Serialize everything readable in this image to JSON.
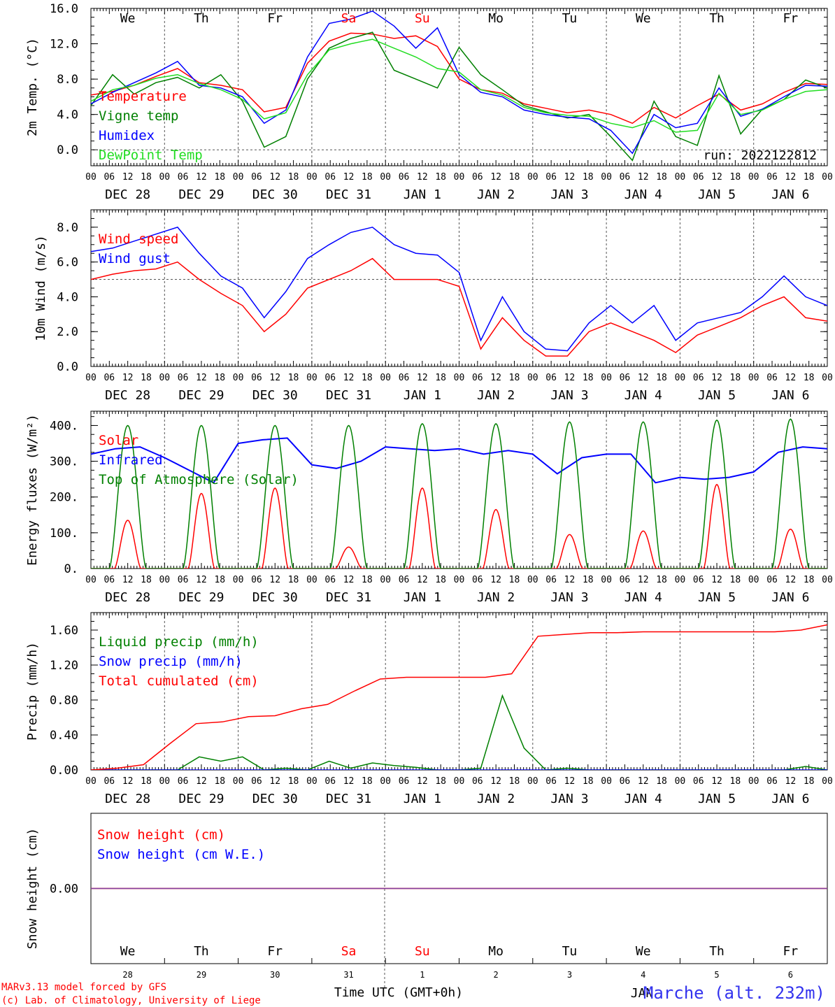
{
  "chart_data": {
    "type": "line",
    "run_label": "run: 2022122812",
    "footer": {
      "credit_line1": "MARv3.13 model forced by GFS",
      "credit_line2": "(c) Lab. of Climatology, University of Liege",
      "time_axis_label": "Time UTC (GMT+0h)",
      "station": "Marche (alt. 232m)",
      "month_label": "JAN"
    },
    "days": [
      {
        "weekday": "We",
        "date": "DEC 28",
        "num": "28",
        "weekend": false
      },
      {
        "weekday": "Th",
        "date": "DEC 29",
        "num": "29",
        "weekend": false
      },
      {
        "weekday": "Fr",
        "date": "DEC 30",
        "num": "30",
        "weekend": false
      },
      {
        "weekday": "Sa",
        "date": "DEC 31",
        "num": "31",
        "weekend": true
      },
      {
        "weekday": "Su",
        "date": "JAN  1",
        "num": "1",
        "weekend": true
      },
      {
        "weekday": "Mo",
        "date": "JAN  2",
        "num": "2",
        "weekend": false
      },
      {
        "weekday": "Tu",
        "date": "JAN  3",
        "num": "3",
        "weekend": false
      },
      {
        "weekday": "We",
        "date": "JAN  4",
        "num": "4",
        "weekend": false
      },
      {
        "weekday": "Th",
        "date": "JAN  5",
        "num": "5",
        "weekend": false
      },
      {
        "weekday": "Fr",
        "date": "JAN  6",
        "num": "6",
        "weekend": false
      }
    ],
    "hour_ticks": [
      "00",
      "06",
      "12",
      "18"
    ],
    "hour_tick_end": "00",
    "colors": {
      "red": "#ff0000",
      "blue": "#0000ff",
      "green": "#008000",
      "lightgreen": "#22dd22",
      "dark": "#000000",
      "purple": "#7f3f9f"
    },
    "panels": [
      {
        "id": "temp",
        "ylabel": "2m Temp. (°C)",
        "ylim": [
          -1.8,
          16.0
        ],
        "ticks": [
          0.0,
          4.0,
          8.0,
          12.0,
          16.0
        ],
        "tick_labels": [
          "0.0",
          "4.0",
          "8.0",
          "12.0",
          "16.0"
        ],
        "ref_line": 0.0,
        "series": [
          {
            "name": "Temperature",
            "color": "red",
            "values": [
              6.2,
              6.6,
              7.3,
              8.3,
              9.2,
              7.6,
              7.3,
              6.8,
              4.3,
              4.8,
              9.8,
              12.3,
              13.2,
              13.1,
              12.6,
              12.9,
              11.7,
              8.0,
              6.8,
              6.4,
              5.2,
              4.7,
              4.2,
              4.5,
              4.0,
              3.0,
              4.8,
              3.6,
              5.0,
              6.3,
              4.5,
              5.2,
              6.5,
              7.5,
              7.4
            ]
          },
          {
            "name": "Vigne temp",
            "color": "green",
            "values": [
              5.0,
              8.5,
              6.3,
              7.6,
              8.2,
              7.0,
              8.5,
              5.5,
              0.3,
              1.5,
              8.0,
              11.5,
              12.6,
              13.3,
              9.0,
              8.0,
              7.0,
              11.6,
              8.5,
              6.8,
              5.0,
              4.3,
              3.6,
              4.0,
              1.5,
              -1.2,
              5.5,
              1.5,
              0.5,
              8.4,
              1.8,
              4.6,
              5.7,
              7.9,
              7.0
            ]
          },
          {
            "name": "Humidex",
            "color": "blue",
            "values": [
              5.2,
              6.5,
              7.6,
              8.7,
              10.0,
              7.3,
              7.0,
              6.0,
              3.0,
              4.5,
              10.5,
              14.3,
              14.8,
              15.7,
              14.0,
              11.5,
              13.8,
              8.5,
              6.5,
              6.0,
              4.5,
              4.0,
              3.7,
              3.5,
              2.2,
              -0.4,
              4.0,
              2.5,
              3.0,
              7.0,
              3.8,
              4.6,
              6.0,
              7.3,
              7.2
            ]
          },
          {
            "name": "DewPoint Temp",
            "color": "lightgreen",
            "values": [
              5.5,
              6.8,
              7.3,
              8.1,
              8.5,
              7.5,
              6.8,
              5.7,
              3.5,
              4.2,
              8.5,
              11.3,
              12.0,
              12.5,
              11.5,
              10.5,
              9.2,
              8.8,
              6.8,
              6.2,
              4.8,
              4.2,
              3.9,
              3.8,
              3.0,
              2.5,
              3.3,
              2.0,
              2.2,
              6.4,
              4.0,
              4.5,
              5.7,
              6.6,
              6.8
            ]
          }
        ]
      },
      {
        "id": "wind",
        "ylabel": "10m Wind (m/s)",
        "ylim": [
          0.0,
          9.0
        ],
        "ticks": [
          0.0,
          2.0,
          4.0,
          6.0,
          8.0
        ],
        "tick_labels": [
          "0.0",
          "2.0",
          "4.0",
          "6.0",
          "8.0"
        ],
        "ref_line": 5.0,
        "series": [
          {
            "name": "Wind speed",
            "color": "red",
            "values": [
              5.0,
              5.3,
              5.5,
              5.6,
              6.0,
              5.0,
              4.2,
              3.5,
              2.0,
              3.0,
              4.5,
              5.0,
              5.5,
              6.2,
              5.0,
              5.0,
              5.0,
              4.6,
              1.0,
              2.8,
              1.5,
              0.6,
              0.6,
              2.0,
              2.5,
              2.0,
              1.5,
              0.8,
              1.8,
              2.3,
              2.8,
              3.5,
              4.0,
              2.8,
              2.6
            ]
          },
          {
            "name": "Wind gust",
            "color": "blue",
            "values": [
              6.6,
              6.8,
              7.2,
              7.6,
              8.0,
              6.5,
              5.2,
              4.5,
              2.8,
              4.3,
              6.2,
              7.0,
              7.7,
              8.0,
              7.0,
              6.5,
              6.4,
              5.4,
              1.5,
              4.0,
              2.0,
              1.0,
              0.9,
              2.5,
              3.5,
              2.5,
              3.5,
              1.5,
              2.5,
              2.8,
              3.1,
              4.0,
              5.2,
              4.0,
              3.5
            ]
          }
        ]
      },
      {
        "id": "energy",
        "ylabel": "Energy fluxes (W/m²)",
        "ylim": [
          0.0,
          440.0
        ],
        "ticks": [
          0,
          100,
          200,
          300,
          400
        ],
        "tick_labels": [
          "0.",
          "100.",
          "200.",
          "300.",
          "400."
        ],
        "series": [
          {
            "name": "Solar",
            "color": "red",
            "peaks": [
              135,
              210,
              225,
              60,
              225,
              165,
              95,
              105,
              235,
              110
            ]
          },
          {
            "name": "Infrared",
            "color": "blue",
            "values": [
              320,
              335,
              340,
              310,
              275,
              240,
              350,
              360,
              365,
              290,
              280,
              300,
              340,
              335,
              330,
              335,
              320,
              330,
              320,
              265,
              310,
              320,
              320,
              240,
              255,
              250,
              255,
              270,
              325,
              340,
              335
            ]
          },
          {
            "name": "Top of Atmosphere (Solar)",
            "color": "green",
            "peaks": [
              400,
              400,
              400,
              400,
              405,
              405,
              410,
              410,
              415,
              418
            ]
          }
        ]
      },
      {
        "id": "precip",
        "ylabel": "Precip (mm/h)",
        "ylim": [
          0.0,
          1.8
        ],
        "ticks": [
          0.0,
          0.4,
          0.8,
          1.2,
          1.6
        ],
        "tick_labels": [
          "0.00",
          "0.40",
          "0.80",
          "1.20",
          "1.60"
        ],
        "series": [
          {
            "name": "Liquid precip (mm/h)",
            "color": "green",
            "values": [
              0,
              0,
              0,
              0,
              0,
              0.15,
              0.1,
              0.15,
              0,
              0.02,
              0,
              0.1,
              0.02,
              0.08,
              0.05,
              0.03,
              0,
              0,
              0.02,
              0.85,
              0.25,
              0,
              0.02,
              0,
              0,
              0,
              0,
              0,
              0,
              0,
              0,
              0,
              0,
              0.04,
              0
            ]
          },
          {
            "name": "Snow precip (mm/h)",
            "color": "blue",
            "values": [
              0
            ]
          },
          {
            "name": "Total cumulated (cm)",
            "color": "red",
            "values": [
              0.0,
              0.02,
              0.06,
              0.3,
              0.53,
              0.55,
              0.61,
              0.62,
              0.7,
              0.75,
              0.9,
              1.04,
              1.06,
              1.06,
              1.06,
              1.06,
              1.1,
              1.53,
              1.55,
              1.57,
              1.57,
              1.58,
              1.58,
              1.58,
              1.58,
              1.58,
              1.58,
              1.6,
              1.66
            ]
          }
        ]
      },
      {
        "id": "snow",
        "ylabel": "Snow height (cm)",
        "ylim": [
          -1.0,
          1.0
        ],
        "ticks": [
          0.0
        ],
        "tick_labels": [
          "0.00"
        ],
        "series": [
          {
            "name": "Snow height (cm)",
            "color": "red",
            "values": [
              0
            ]
          },
          {
            "name": "Snow height (cm W.E.)",
            "color": "blue",
            "values": [
              0
            ]
          }
        ]
      }
    ]
  }
}
